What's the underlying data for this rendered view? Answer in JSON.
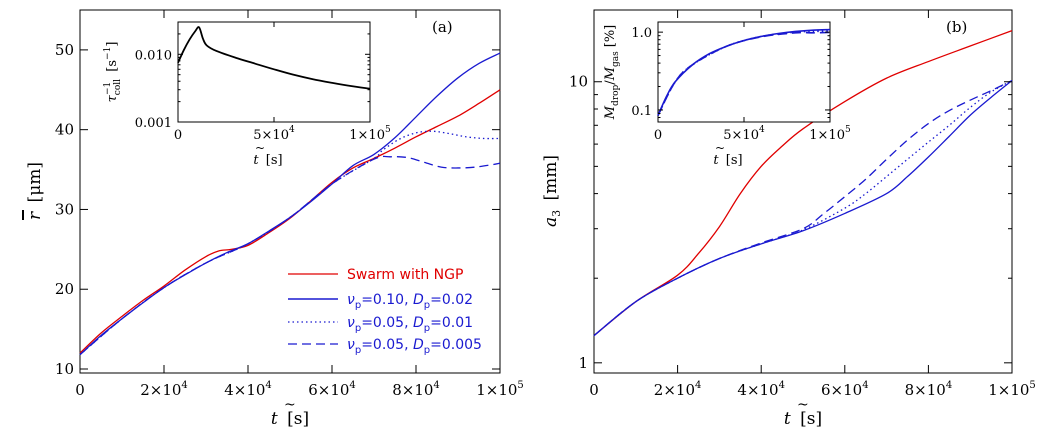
{
  "colors": {
    "red": "#e00000",
    "blue": "#1a1ad0",
    "black": "#000000"
  },
  "chart_data": [
    {
      "type": "line",
      "panel_label": "(a)",
      "ylabel_sym": "r",
      "ylabel_unit": "[μm]",
      "xlabel_sym": "t",
      "xlabel_unit": "[s]",
      "xlim": [
        0,
        100000
      ],
      "ylim": [
        9.5,
        55
      ],
      "xticks": [
        0,
        20000,
        40000,
        60000,
        80000,
        100000
      ],
      "xtick_labels": [
        "0",
        "2×10",
        "4×10",
        "6×10",
        "8×10",
        "1×10"
      ],
      "xtick_exps": [
        "",
        "4",
        "4",
        "4",
        "4",
        "5"
      ],
      "yticks": [
        10,
        20,
        30,
        40,
        50
      ],
      "ytick_labels": [
        "10",
        "20",
        "30",
        "40",
        "50"
      ],
      "series": [
        {
          "name": "Swarm with NGP",
          "color": "#e00000",
          "dash": "",
          "x": [
            0,
            5000,
            10000,
            15000,
            20000,
            25000,
            30000,
            33000,
            36000,
            40000,
            45000,
            50000,
            55000,
            60000,
            65000,
            70000,
            75000,
            80000,
            85000,
            90000,
            95000,
            100000
          ],
          "y": [
            12.0,
            14.5,
            16.6,
            18.6,
            20.4,
            22.4,
            24.1,
            24.8,
            25.0,
            25.5,
            27.1,
            28.9,
            31.1,
            33.4,
            35.2,
            36.4,
            37.7,
            39.1,
            40.4,
            41.7,
            43.3,
            45.0
          ]
        },
        {
          "name": "ν=0.10, D=0.02",
          "color": "#1a1ad0",
          "dash": "",
          "x": [
            0,
            5000,
            10000,
            15000,
            20000,
            25000,
            30000,
            35000,
            40000,
            45000,
            50000,
            55000,
            60000,
            65000,
            70000,
            75000,
            80000,
            85000,
            90000,
            95000,
            100000
          ],
          "y": [
            11.8,
            14.2,
            16.3,
            18.3,
            20.2,
            21.8,
            23.3,
            24.6,
            25.7,
            27.3,
            29.0,
            31.0,
            33.2,
            35.5,
            36.9,
            39.0,
            41.6,
            44.2,
            46.5,
            48.3,
            49.6
          ]
        },
        {
          "name": "ν=0.05, D=0.01",
          "color": "#1a1ad0",
          "dash": "1.5,3",
          "x": [
            0,
            10000,
            20000,
            30000,
            40000,
            50000,
            60000,
            70000,
            72000,
            76000,
            80000,
            84000,
            88000,
            92000,
            96000,
            100000
          ],
          "y": [
            11.8,
            16.3,
            20.2,
            23.3,
            25.7,
            29.0,
            33.2,
            36.4,
            37.4,
            38.8,
            39.6,
            39.8,
            39.5,
            39.1,
            38.9,
            38.9
          ]
        },
        {
          "name": "ν=0.05, D=0.005",
          "color": "#1a1ad0",
          "dash": "9,5",
          "x": [
            0,
            10000,
            20000,
            30000,
            40000,
            50000,
            60000,
            70000,
            74000,
            78000,
            82000,
            86000,
            90000,
            94000,
            98000,
            100000
          ],
          "y": [
            11.8,
            16.3,
            20.2,
            23.3,
            25.7,
            29.0,
            33.2,
            36.3,
            36.6,
            36.5,
            35.9,
            35.3,
            35.2,
            35.3,
            35.6,
            35.8
          ]
        }
      ],
      "legend": [
        {
          "label": "Swarm with NGP",
          "color": "#e00000",
          "dash": "",
          "style": "red"
        },
        {
          "nu": "0.10",
          "d": "0.02",
          "color": "#1a1ad0",
          "dash": "",
          "style": "blue"
        },
        {
          "nu": "0.05",
          "d": "0.01",
          "color": "#1a1ad0",
          "dash": "1.5,3",
          "style": "blue"
        },
        {
          "nu": "0.05",
          "d": "0.005",
          "color": "#1a1ad0",
          "dash": "9,5",
          "style": "blue"
        }
      ],
      "legend_placement": "bottom-right",
      "inset": {
        "ylabel_sym": "τ",
        "ylabel_unit": "[s",
        "xlabel_sym": "t",
        "xlabel_unit": "[s]",
        "xlim": [
          0,
          100000
        ],
        "ylim_log": [
          0.001,
          0.03
        ],
        "xticks": [
          0,
          50000,
          100000
        ],
        "xtick_labels": [
          "0",
          "5×10",
          "1×10"
        ],
        "xtick_exps": [
          "",
          "4",
          "5"
        ],
        "yticks": [
          0.001,
          0.01
        ],
        "ytick_labels": [
          "0.001",
          "0.010"
        ],
        "series": [
          {
            "color": "#000000",
            "x": [
              0,
              3000,
              6000,
              9000,
              11000,
              13000,
              15000,
              20000,
              30000,
              40000,
              50000,
              60000,
              70000,
              80000,
              90000,
              100000
            ],
            "y": [
              0.0075,
              0.0115,
              0.0165,
              0.022,
              0.025,
              0.017,
              0.0135,
              0.0112,
              0.0089,
              0.0073,
              0.006,
              0.005,
              0.0043,
              0.0038,
              0.0034,
              0.0031
            ]
          }
        ]
      }
    },
    {
      "type": "line",
      "panel_label": "(b)",
      "ylabel_sym": "a",
      "ylabel_sub": "3",
      "ylabel_unit": "[mm]",
      "xlabel_sym": "t",
      "xlabel_unit": "[s]",
      "xlim": [
        0,
        100000
      ],
      "ylim_log": [
        0.92,
        18
      ],
      "yscale": "log",
      "xticks": [
        0,
        20000,
        40000,
        60000,
        80000,
        100000
      ],
      "xtick_labels": [
        "0",
        "2×10",
        "4×10",
        "6×10",
        "8×10",
        "1×10"
      ],
      "xtick_exps": [
        "",
        "4",
        "4",
        "4",
        "4",
        "5"
      ],
      "yticks": [
        1,
        10
      ],
      "ytick_labels": [
        "1",
        "10"
      ],
      "series": [
        {
          "name": "Swarm with NGP",
          "color": "#e00000",
          "dash": "",
          "x": [
            0,
            10000,
            20000,
            25000,
            30000,
            35000,
            40000,
            45000,
            50000,
            60000,
            70000,
            80000,
            90000,
            100000
          ],
          "y": [
            1.25,
            1.65,
            2.05,
            2.45,
            3.05,
            4.0,
            5.0,
            5.9,
            6.8,
            8.5,
            10.3,
            11.8,
            13.4,
            15.2
          ]
        },
        {
          "name": "ν=0.10, D=0.02",
          "color": "#1a1ad0",
          "dash": "",
          "x": [
            0,
            10000,
            20000,
            30000,
            40000,
            50000,
            60000,
            70000,
            75000,
            80000,
            85000,
            90000,
            95000,
            100000
          ],
          "y": [
            1.25,
            1.65,
            2.0,
            2.35,
            2.65,
            2.95,
            3.4,
            4.0,
            4.6,
            5.4,
            6.4,
            7.6,
            8.8,
            10.1
          ]
        },
        {
          "name": "ν=0.05, D=0.01",
          "color": "#1a1ad0",
          "dash": "1.5,3",
          "x": [
            0,
            10000,
            20000,
            30000,
            40000,
            50000,
            60000,
            65000,
            70000,
            75000,
            80000,
            85000,
            90000,
            95000,
            100000
          ],
          "y": [
            1.25,
            1.65,
            2.0,
            2.35,
            2.65,
            2.97,
            3.55,
            4.0,
            4.6,
            5.3,
            6.1,
            7.0,
            8.1,
            9.2,
            10.1
          ]
        },
        {
          "name": "ν=0.05, D=0.005",
          "color": "#1a1ad0",
          "dash": "9,5",
          "x": [
            0,
            10000,
            20000,
            30000,
            40000,
            50000,
            55000,
            60000,
            65000,
            70000,
            75000,
            80000,
            85000,
            90000,
            95000,
            100000
          ],
          "y": [
            1.25,
            1.65,
            2.0,
            2.35,
            2.67,
            3.0,
            3.4,
            3.9,
            4.5,
            5.3,
            6.2,
            7.1,
            7.9,
            8.6,
            9.3,
            10.1
          ]
        }
      ],
      "inset": {
        "ylabel_sym": "M",
        "ylabel_unit": "[%]",
        "xlabel_sym": "t",
        "xlabel_unit": "[s]",
        "xlim": [
          0,
          100000
        ],
        "ylim_log": [
          0.07,
          1.35
        ],
        "xticks": [
          0,
          50000,
          100000
        ],
        "xtick_labels": [
          "0",
          "5×10",
          "1×10"
        ],
        "xtick_exps": [
          "",
          "4",
          "5"
        ],
        "yticks": [
          0.1,
          1.0
        ],
        "ytick_labels": [
          "0.1",
          "1.0"
        ],
        "series": [
          {
            "color": "#1a1ad0",
            "dash": "",
            "x": [
              0,
              5000,
              10000,
              20000,
              30000,
              40000,
              50000,
              60000,
              70000,
              80000,
              90000,
              100000
            ],
            "y": [
              0.085,
              0.15,
              0.23,
              0.38,
              0.53,
              0.66,
              0.78,
              0.88,
              0.96,
              1.02,
              1.06,
              1.08
            ]
          },
          {
            "color": "#1a1ad0",
            "dash": "1.5,3",
            "x": [
              0,
              10000,
              20000,
              40000,
              60000,
              80000,
              90000,
              100000
            ],
            "y": [
              0.085,
              0.23,
              0.38,
              0.66,
              0.88,
              1.0,
              1.02,
              1.03
            ]
          },
          {
            "color": "#1a1ad0",
            "dash": "9,5",
            "x": [
              0,
              10000,
              20000,
              40000,
              60000,
              80000,
              90000,
              100000
            ],
            "y": [
              0.085,
              0.23,
              0.38,
              0.66,
              0.87,
              0.98,
              0.98,
              0.99
            ]
          }
        ]
      }
    }
  ]
}
